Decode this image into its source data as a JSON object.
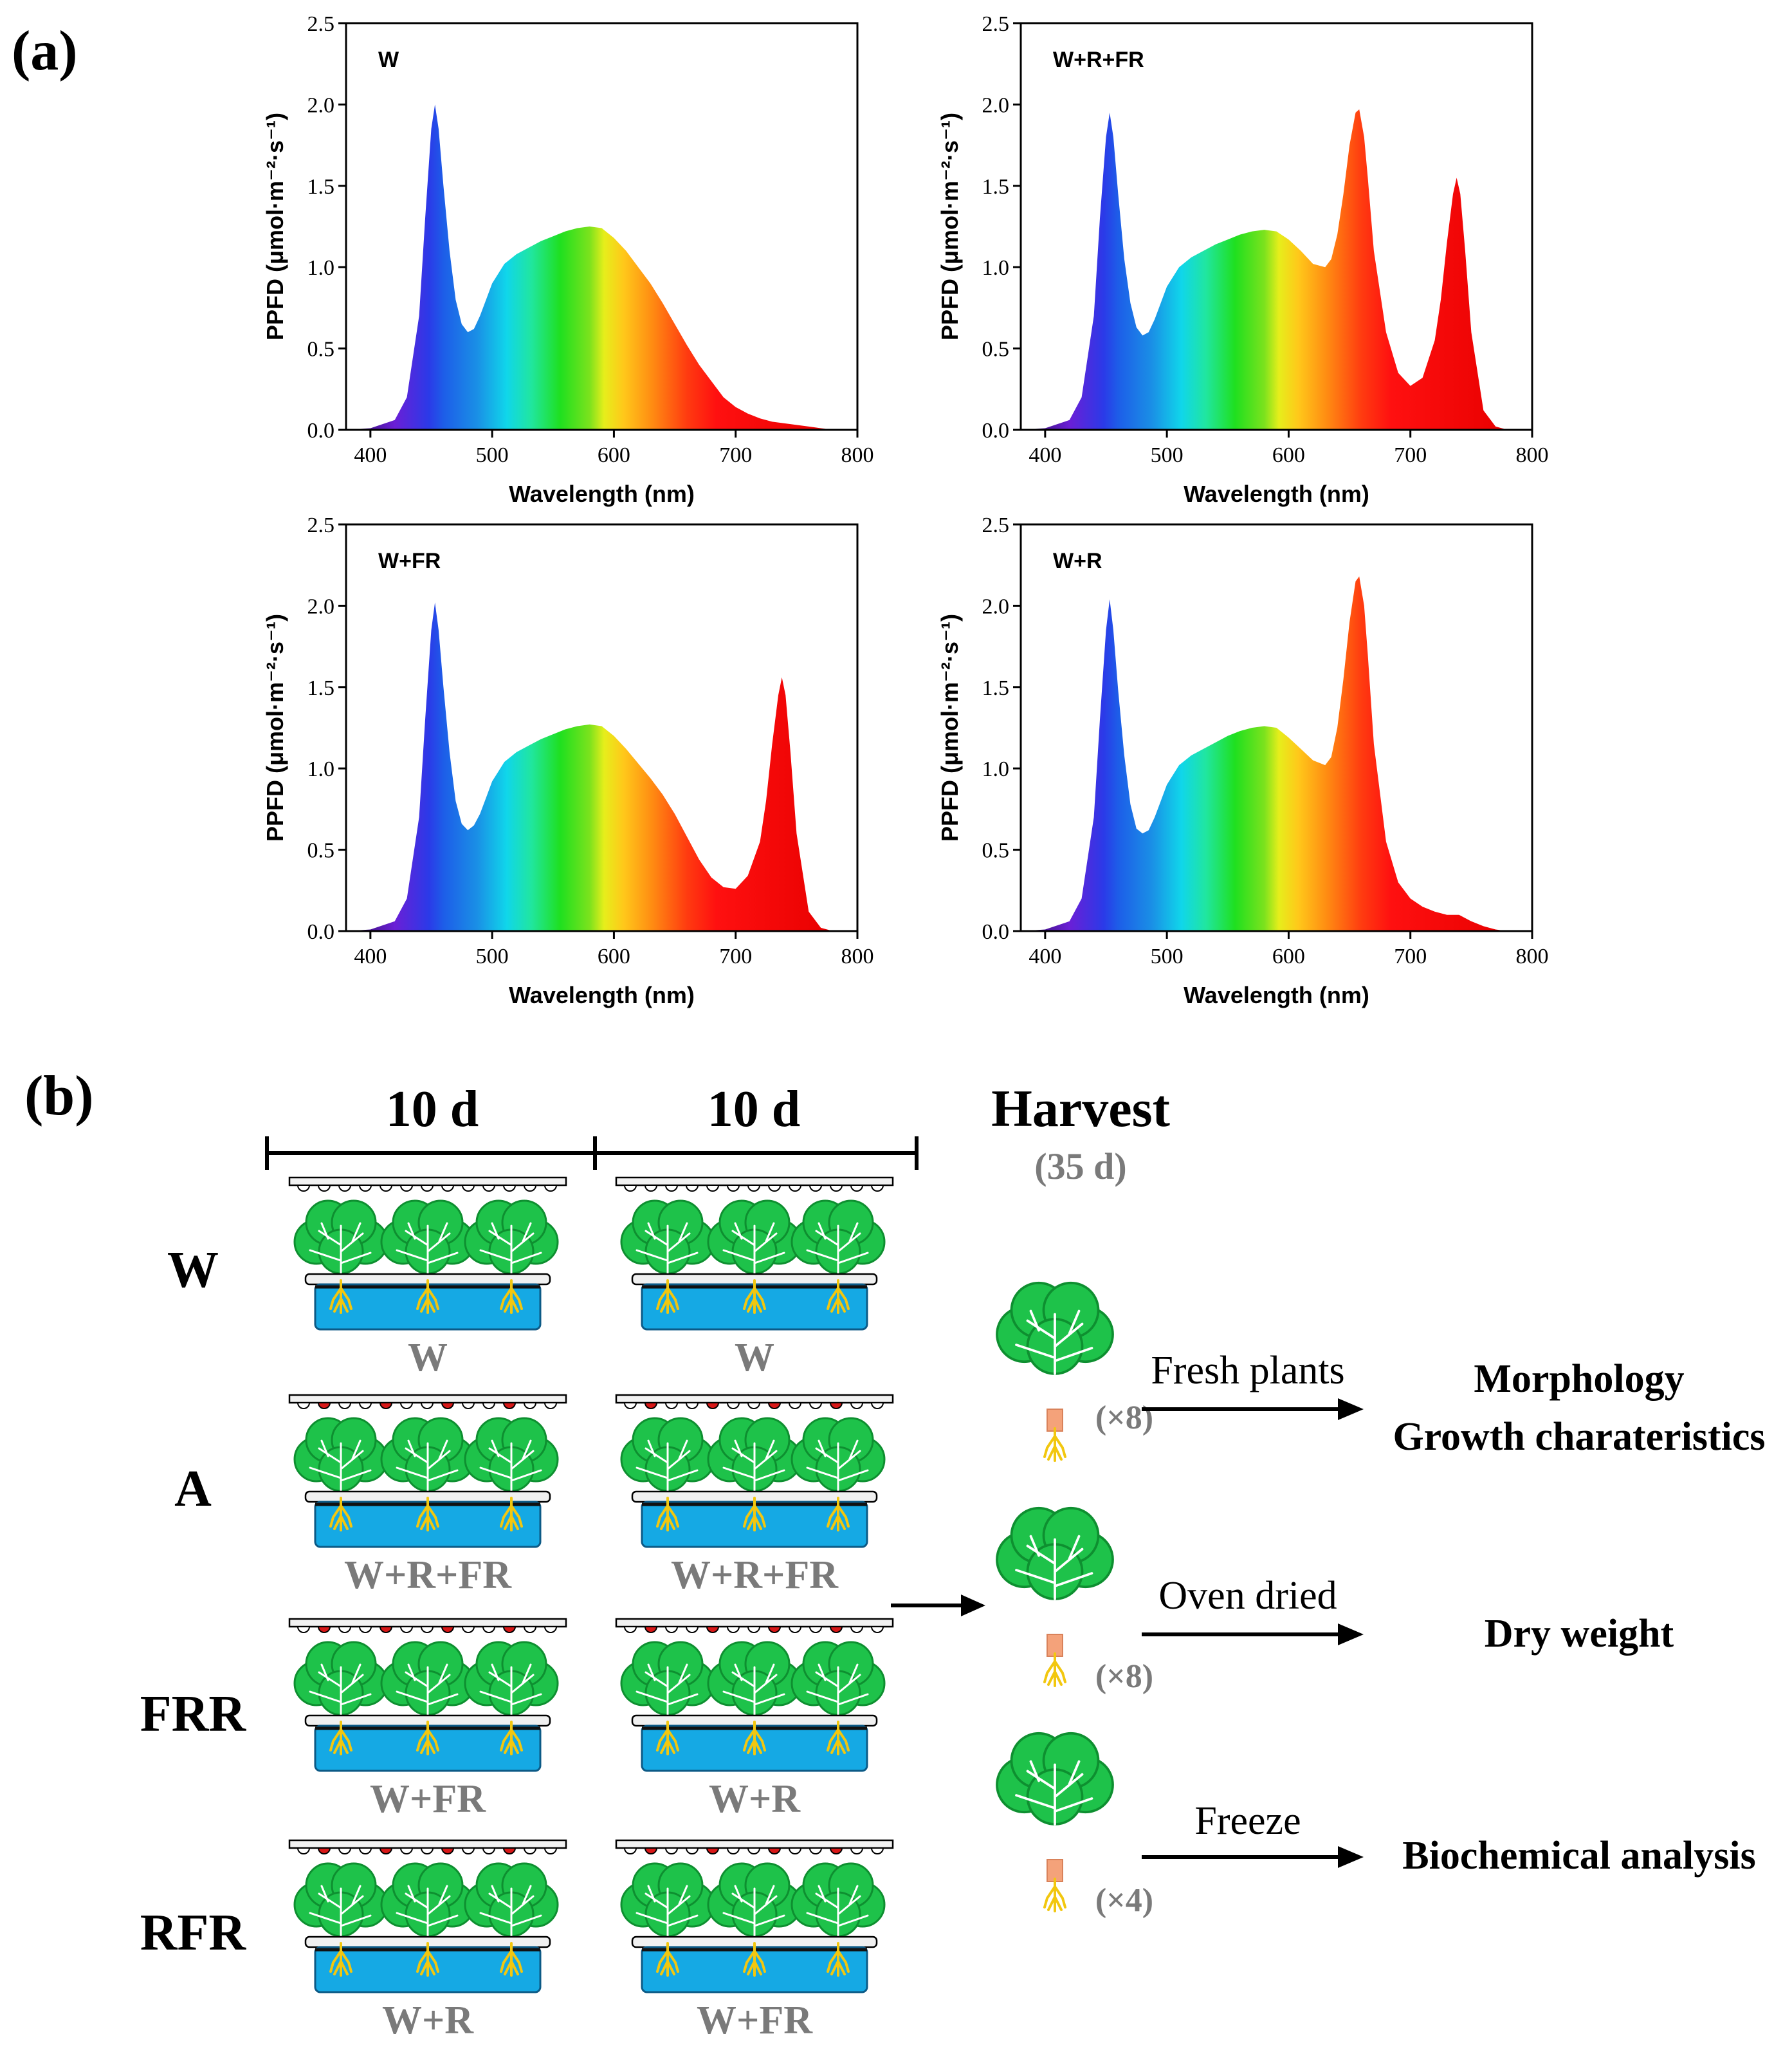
{
  "panel_a": {
    "label": "(a)",
    "chart_data": [
      {
        "type": "area",
        "title": "W",
        "xlabel": "Wavelength (nm)",
        "ylabel": "PPFD (μmol·m⁻²·s⁻¹)",
        "xlim": [
          380,
          800
        ],
        "ylim": [
          0,
          2.5
        ],
        "xticks": [
          "400",
          "500",
          "600",
          "700",
          "800"
        ],
        "yticks": [
          "0.0",
          "0.5",
          "1.0",
          "1.5",
          "2.0",
          "2.5"
        ],
        "x": [
          380,
          400,
          420,
          430,
          440,
          445,
          450,
          453,
          456,
          460,
          465,
          470,
          475,
          480,
          485,
          490,
          495,
          500,
          510,
          520,
          530,
          540,
          550,
          560,
          570,
          580,
          590,
          600,
          610,
          620,
          630,
          640,
          650,
          660,
          670,
          680,
          690,
          700,
          710,
          720,
          730,
          740,
          750,
          760,
          770,
          780
        ],
        "values": [
          0.0,
          0.01,
          0.06,
          0.2,
          0.7,
          1.3,
          1.85,
          2.0,
          1.85,
          1.5,
          1.1,
          0.8,
          0.65,
          0.6,
          0.62,
          0.7,
          0.8,
          0.9,
          1.02,
          1.08,
          1.12,
          1.16,
          1.19,
          1.22,
          1.24,
          1.25,
          1.24,
          1.18,
          1.1,
          1.0,
          0.9,
          0.78,
          0.65,
          0.52,
          0.4,
          0.3,
          0.2,
          0.14,
          0.1,
          0.07,
          0.05,
          0.04,
          0.03,
          0.02,
          0.01,
          0.0
        ]
      },
      {
        "type": "area",
        "title": "W+R+FR",
        "xlabel": "Wavelength (nm)",
        "ylabel": "PPFD (μmol·m⁻²·s⁻¹)",
        "xlim": [
          380,
          800
        ],
        "ylim": [
          0,
          2.5
        ],
        "xticks": [
          "400",
          "500",
          "600",
          "700",
          "800"
        ],
        "yticks": [
          "0.0",
          "0.5",
          "1.0",
          "1.5",
          "2.0",
          "2.5"
        ],
        "x": [
          380,
          400,
          420,
          430,
          440,
          445,
          450,
          453,
          456,
          460,
          465,
          470,
          475,
          480,
          485,
          490,
          495,
          500,
          510,
          520,
          530,
          540,
          550,
          560,
          570,
          580,
          590,
          600,
          610,
          620,
          630,
          635,
          640,
          645,
          650,
          655,
          658,
          662,
          665,
          670,
          680,
          690,
          700,
          710,
          720,
          725,
          730,
          735,
          738,
          741,
          745,
          750,
          760,
          770,
          780
        ],
        "values": [
          0.0,
          0.01,
          0.06,
          0.2,
          0.7,
          1.3,
          1.8,
          1.95,
          1.8,
          1.45,
          1.05,
          0.78,
          0.63,
          0.58,
          0.6,
          0.68,
          0.78,
          0.88,
          1.0,
          1.06,
          1.1,
          1.14,
          1.17,
          1.2,
          1.22,
          1.23,
          1.22,
          1.17,
          1.1,
          1.02,
          1.0,
          1.05,
          1.2,
          1.45,
          1.75,
          1.95,
          1.97,
          1.8,
          1.55,
          1.1,
          0.6,
          0.35,
          0.27,
          0.32,
          0.55,
          0.8,
          1.15,
          1.45,
          1.55,
          1.45,
          1.1,
          0.6,
          0.12,
          0.02,
          0.0
        ]
      },
      {
        "type": "area",
        "title": "W+FR",
        "xlabel": "Wavelength (nm)",
        "ylabel": "PPFD (μmol·m⁻²·s⁻¹)",
        "xlim": [
          380,
          800
        ],
        "ylim": [
          0,
          2.5
        ],
        "xticks": [
          "400",
          "500",
          "600",
          "700",
          "800"
        ],
        "yticks": [
          "0.0",
          "0.5",
          "1.0",
          "1.5",
          "2.0",
          "2.5"
        ],
        "x": [
          380,
          400,
          420,
          430,
          440,
          445,
          450,
          453,
          456,
          460,
          465,
          470,
          475,
          480,
          485,
          490,
          495,
          500,
          510,
          520,
          530,
          540,
          550,
          560,
          570,
          580,
          590,
          600,
          610,
          620,
          630,
          640,
          650,
          660,
          670,
          680,
          690,
          700,
          710,
          720,
          725,
          730,
          735,
          738,
          741,
          745,
          750,
          760,
          770,
          780
        ],
        "values": [
          0.0,
          0.01,
          0.06,
          0.2,
          0.7,
          1.3,
          1.85,
          2.02,
          1.85,
          1.5,
          1.1,
          0.8,
          0.66,
          0.62,
          0.65,
          0.72,
          0.82,
          0.92,
          1.04,
          1.1,
          1.14,
          1.18,
          1.21,
          1.24,
          1.26,
          1.27,
          1.26,
          1.2,
          1.12,
          1.03,
          0.94,
          0.84,
          0.72,
          0.58,
          0.44,
          0.33,
          0.27,
          0.26,
          0.34,
          0.55,
          0.8,
          1.15,
          1.45,
          1.56,
          1.45,
          1.1,
          0.6,
          0.12,
          0.02,
          0.0
        ]
      },
      {
        "type": "area",
        "title": "W+R",
        "xlabel": "Wavelength (nm)",
        "ylabel": "PPFD (μmol·m⁻²·s⁻¹)",
        "xlim": [
          380,
          800
        ],
        "ylim": [
          0,
          2.5
        ],
        "xticks": [
          "400",
          "500",
          "600",
          "700",
          "800"
        ],
        "yticks": [
          "0.0",
          "0.5",
          "1.0",
          "1.5",
          "2.0",
          "2.5"
        ],
        "x": [
          380,
          400,
          420,
          430,
          440,
          445,
          450,
          453,
          456,
          460,
          465,
          470,
          475,
          480,
          485,
          490,
          495,
          500,
          510,
          520,
          530,
          540,
          550,
          560,
          570,
          580,
          590,
          600,
          610,
          620,
          630,
          635,
          640,
          645,
          650,
          655,
          658,
          662,
          665,
          670,
          680,
          690,
          700,
          710,
          720,
          730,
          740,
          750,
          760,
          770,
          780
        ],
        "values": [
          0.0,
          0.01,
          0.06,
          0.2,
          0.7,
          1.3,
          1.85,
          2.04,
          1.85,
          1.48,
          1.08,
          0.78,
          0.63,
          0.6,
          0.62,
          0.7,
          0.8,
          0.9,
          1.02,
          1.08,
          1.12,
          1.16,
          1.2,
          1.23,
          1.25,
          1.26,
          1.25,
          1.19,
          1.12,
          1.05,
          1.02,
          1.07,
          1.25,
          1.55,
          1.9,
          2.15,
          2.18,
          2.0,
          1.7,
          1.15,
          0.55,
          0.3,
          0.2,
          0.15,
          0.12,
          0.1,
          0.1,
          0.06,
          0.03,
          0.01,
          0.0
        ]
      }
    ]
  },
  "panel_b": {
    "label": "(b)",
    "period_1": "10 d",
    "period_2": "10 d",
    "harvest_title": "Harvest",
    "harvest_day": "(35 d)",
    "treatments": [
      {
        "name": "W",
        "light_1": "W",
        "light_2": "W"
      },
      {
        "name": "A",
        "light_1": "W+R+FR",
        "light_2": "W+R+FR"
      },
      {
        "name": "FRR",
        "light_1": "W+FR",
        "light_2": "W+R"
      },
      {
        "name": "RFR",
        "light_1": "W+R",
        "light_2": "W+FR"
      }
    ],
    "analyses": [
      {
        "process": "Fresh plants",
        "count": "(×8)",
        "result_1": "Morphology",
        "result_2": "Growth charateristics"
      },
      {
        "process": "Oven dried",
        "count": "(×8)",
        "result_1": "Dry weight",
        "result_2": ""
      },
      {
        "process": "Freeze",
        "count": "(×4)",
        "result_1": "Biochemical analysis",
        "result_2": ""
      }
    ],
    "colors": {
      "leaf": "#1ec24a",
      "leaf_dark": "#0e8f30",
      "water": "#15a9e4",
      "root": "#f2c70f",
      "red_led": "#d81818",
      "text_gray": "#7a7a7a"
    }
  }
}
